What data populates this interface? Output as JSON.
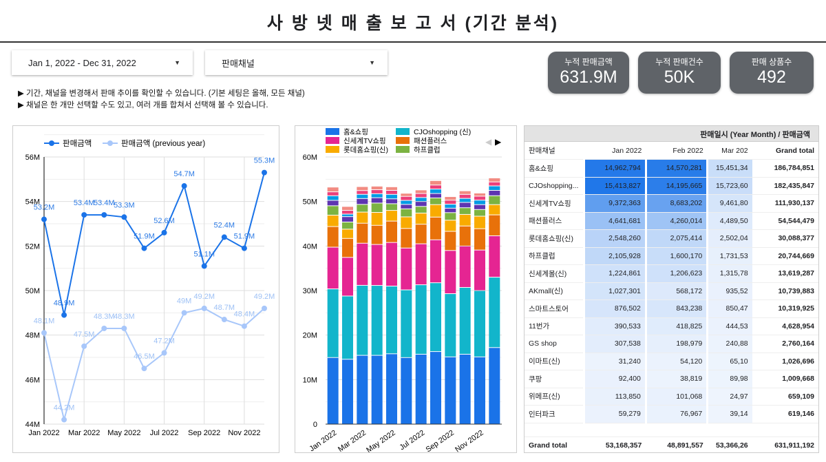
{
  "title": "사 방 넷 매 출 보 고 서 (기간 분석)",
  "filters": {
    "date_range": "Jan 1, 2022 - Dec 31, 2022",
    "channel": "판매채널",
    "dropdown_icon": "caret-down-icon"
  },
  "notes": [
    "▶ 기간, 채널을 변경해서 판매 추이를 확인할 수 있습니다. (기본 세팅은 올해, 모든 채널)",
    "▶ 채널은 한 개만 선택할 수도 있고, 여러 개를 합쳐서 선택해 볼 수 있습니다."
  ],
  "kpis": [
    {
      "label": "누적 판매금액",
      "value": "631.9M"
    },
    {
      "label": "누적 판매건수",
      "value": "50K"
    },
    {
      "label": "판매 상품수",
      "value": "492"
    }
  ],
  "colors": {
    "kpi_bg": "#5f6368",
    "line_current": "#1a73e8",
    "line_previous": "#a8c7fa",
    "heat_max": "#1a73e8"
  },
  "chart_data": [
    {
      "type": "line",
      "legend_position": "top-left",
      "grid": true,
      "x": [
        "Jan 2022",
        "Feb 2022",
        "Mar 2022",
        "Apr 2022",
        "May 2022",
        "Jun 2022",
        "Jul 2022",
        "Aug 2022",
        "Sep 2022",
        "Oct 2022",
        "Nov 2022",
        "Dec 2022"
      ],
      "x_tick_labels": [
        "Jan 2022",
        "Mar 2022",
        "May 2022",
        "Jul 2022",
        "Sep 2022",
        "Nov 2022"
      ],
      "y_tick_labels": [
        "44M",
        "46M",
        "48M",
        "50M",
        "52M",
        "54M",
        "56M"
      ],
      "ylim": [
        44,
        56
      ],
      "series": [
        {
          "name": "판매금액",
          "values": [
            53.2,
            48.9,
            53.4,
            53.4,
            53.3,
            51.9,
            52.6,
            54.7,
            51.1,
            52.4,
            51.9,
            55.3
          ],
          "labels": [
            "53.2M",
            "48.9M",
            "53.4M",
            "53.4M",
            "53.3M",
            "51.9M",
            "52.6M",
            "54.7M",
            "51.1M",
            "52.4M",
            "51.9M",
            "55.3M"
          ]
        },
        {
          "name": "판매금액 (previous year)",
          "values": [
            48.1,
            44.2,
            47.5,
            48.3,
            48.3,
            46.5,
            47.2,
            49.0,
            49.2,
            48.7,
            48.4,
            49.2
          ],
          "labels": [
            "48.1M",
            "44.2M",
            "47.5M",
            "48.3M",
            "48.3M",
            "46.5M",
            "47.2M",
            "49M",
            "49.2M",
            "48.7M",
            "48.4M",
            "49.2M"
          ]
        }
      ]
    },
    {
      "type": "bar",
      "stacked": true,
      "legend_position": "top",
      "grid": true,
      "x": [
        "Jan 2022",
        "Feb 2022",
        "Mar 2022",
        "Apr 2022",
        "May 2022",
        "Jun 2022",
        "Jul 2022",
        "Aug 2022",
        "Sep 2022",
        "Oct 2022",
        "Nov 2022",
        "Dec 2022"
      ],
      "x_tick_labels": [
        "Jan 2022",
        "Mar 2022",
        "May 2022",
        "Jul 2022",
        "Sep 2022",
        "Nov 2022"
      ],
      "y_tick_labels": [
        "0",
        "10M",
        "20M",
        "30M",
        "40M",
        "50M",
        "60M"
      ],
      "ylim": [
        0,
        60
      ],
      "series": [
        {
          "name": "홈&쇼핑",
          "color": "#1a73e8",
          "values": [
            14.96,
            14.57,
            15.45,
            15.45,
            15.8,
            14.95,
            15.7,
            16.3,
            15.1,
            15.7,
            15.1,
            17.2
          ]
        },
        {
          "name": "CJOshopping (신)",
          "color": "#12b5cb",
          "values": [
            15.41,
            14.2,
            15.72,
            15.7,
            15.2,
            15.2,
            15.6,
            15.45,
            14.2,
            15.0,
            14.9,
            15.8
          ]
        },
        {
          "name": "신세계TV쇼핑",
          "color": "#e52592",
          "values": [
            9.37,
            8.68,
            9.46,
            9.2,
            9.8,
            9.4,
            9.2,
            9.65,
            9.7,
            9.3,
            9.1,
            9.3
          ]
        },
        {
          "name": "패션플러스",
          "color": "#e8710a",
          "values": [
            4.64,
            4.26,
            4.49,
            4.3,
            4.8,
            4.4,
            4.4,
            5.1,
            4.3,
            4.5,
            4.8,
            4.7
          ]
        },
        {
          "name": "롯데홈쇼핑(신)",
          "color": "#f9ab00",
          "values": [
            2.55,
            2.08,
            2.5,
            2.9,
            2.4,
            2.6,
            2.5,
            2.8,
            2.5,
            2.6,
            2.8,
            2.3
          ]
        },
        {
          "name": "하프클럽",
          "color": "#7cb342",
          "values": [
            2.11,
            1.6,
            1.73,
            2.1,
            1.5,
            1.8,
            1.5,
            1.5,
            1.7,
            1.5,
            1.5,
            2.0
          ]
        },
        {
          "color": "#5e35b1",
          "values": [
            1.22,
            1.21,
            1.32,
            1.2,
            1.1,
            1.0,
            1.1,
            1.0,
            1.0,
            1.2,
            1.1,
            1.2
          ]
        },
        {
          "color": "#039be5",
          "values": [
            1.03,
            0.57,
            0.94,
            0.9,
            1.0,
            0.9,
            0.9,
            1.0,
            0.9,
            0.9,
            1.0,
            1.0
          ]
        },
        {
          "color": "#ec407a",
          "values": [
            0.88,
            0.84,
            0.85,
            0.9,
            0.9,
            0.9,
            0.9,
            0.9,
            0.9,
            0.9,
            0.9,
            0.9
          ]
        },
        {
          "color": "#f28b82",
          "values": [
            1.07,
            0.88,
            0.89,
            0.8,
            0.8,
            0.7,
            0.8,
            1.0,
            0.8,
            0.8,
            0.7,
            0.9
          ]
        }
      ]
    }
  ],
  "pivot": {
    "header": "판매일시 (Year Month) / 판매금액",
    "columns": [
      "판매채널",
      "Jan 2022",
      "Feb 2022",
      "Mar 202",
      "Grand total"
    ],
    "rows": [
      [
        "홈&쇼핑",
        "14,962,794",
        "14,570,281",
        "15,451,34",
        "186,784,851"
      ],
      [
        "CJOshopping...",
        "15,413,827",
        "14,195,665",
        "15,723,60",
        "182,435,847"
      ],
      [
        "신세계TV쇼핑",
        "9,372,363",
        "8,683,202",
        "9,461,80",
        "111,930,137"
      ],
      [
        "패션플러스",
        "4,641,681",
        "4,260,014",
        "4,489,50",
        "54,544,479"
      ],
      [
        "롯데홈쇼핑(신)",
        "2,548,260",
        "2,075,414",
        "2,502,04",
        "30,088,377"
      ],
      [
        "하프클럽",
        "2,105,928",
        "1,600,170",
        "1,731,53",
        "20,744,669"
      ],
      [
        "신세계몰(신)",
        "1,224,861",
        "1,206,623",
        "1,315,78",
        "13,619,287"
      ],
      [
        "AKmall(신)",
        "1,027,301",
        "568,172",
        "935,52",
        "10,739,883"
      ],
      [
        "스마트스토어",
        "876,502",
        "843,238",
        "850,47",
        "10,319,925"
      ],
      [
        "11번가",
        "390,533",
        "418,825",
        "444,53",
        "4,628,954"
      ],
      [
        "GS shop",
        "307,538",
        "198,979",
        "240,88",
        "2,760,164"
      ],
      [
        "이마트(신)",
        "31,240",
        "54,120",
        "65,10",
        "1,026,696"
      ],
      [
        "쿠팡",
        "92,400",
        "38,819",
        "89,98",
        "1,009,668"
      ],
      [
        "위메프(신)",
        "113,850",
        "101,068",
        "24,97",
        "659,109"
      ],
      [
        "인터파크",
        "59,279",
        "76,967",
        "39,14",
        "619,146"
      ]
    ],
    "grand_total": [
      "Grand total",
      "53,168,357",
      "48,891,557",
      "53,366,26",
      "631,911,192"
    ]
  }
}
